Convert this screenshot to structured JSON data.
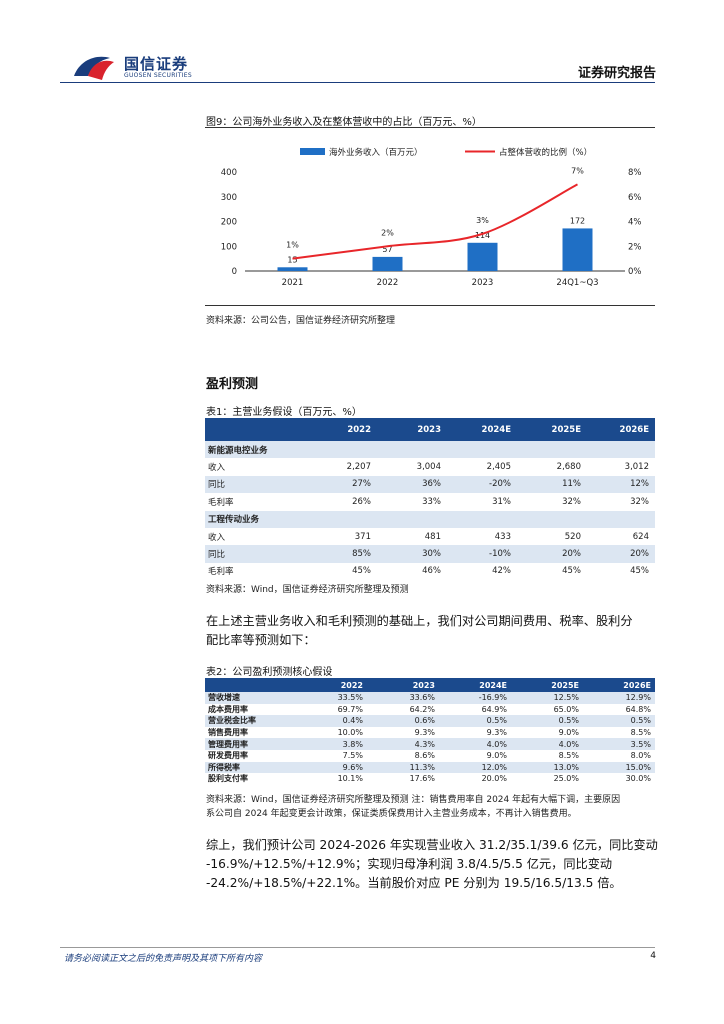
{
  "header": {
    "logo_cn": "国信证券",
    "logo_en": "GUOSEN SECURITIES",
    "report_type": "证券研究报告"
  },
  "figure9": {
    "caption": "图9：公司海外业务收入及在整体营收中的占比（百万元、%）",
    "source": "资料来源：公司公告，国信证券经济研究所整理"
  },
  "chart_data": {
    "type": "bar",
    "categories": [
      "2021",
      "2022",
      "2023",
      "24Q1~Q3"
    ],
    "series": [
      {
        "name": "海外业务收入（百万元）",
        "type": "bar",
        "axis": "left",
        "values": [
          15,
          57,
          114,
          172
        ],
        "color": "#1f6fc5"
      },
      {
        "name": "占整体营收的比例（%）",
        "type": "line",
        "axis": "right",
        "values": [
          1,
          2,
          3,
          7
        ],
        "color": "#e8262a"
      }
    ],
    "bar_labels": [
      "15",
      "57",
      "114",
      "172"
    ],
    "line_labels": [
      "1%",
      "2%",
      "3%",
      "7%"
    ],
    "ylim": [
      0,
      400
    ],
    "yticks": [
      "0",
      "100",
      "200",
      "300",
      "400"
    ],
    "y2lim": [
      0,
      8
    ],
    "y2ticks": [
      "0%",
      "2%",
      "4%",
      "6%",
      "8%"
    ],
    "legend_position": "top",
    "grid": false
  },
  "section_title": "盈利预测",
  "table1": {
    "caption": "表1：主营业务假设（百万元、%）",
    "headers": [
      "",
      "2022",
      "2023",
      "2024E",
      "2025E",
      "2026E"
    ],
    "rows": [
      {
        "kind": "sec",
        "cells": [
          "新能源电控业务",
          "",
          "",
          "",
          "",
          ""
        ]
      },
      {
        "kind": "row",
        "cells": [
          "收入",
          "2,207",
          "3,004",
          "2,405",
          "2,680",
          "3,012"
        ]
      },
      {
        "kind": "row",
        "cells": [
          "同比",
          "27%",
          "36%",
          "-20%",
          "11%",
          "12%"
        ]
      },
      {
        "kind": "row",
        "cells": [
          "毛利率",
          "26%",
          "33%",
          "31%",
          "32%",
          "32%"
        ]
      },
      {
        "kind": "sec",
        "cells": [
          "工程传动业务",
          "",
          "",
          "",
          "",
          ""
        ]
      },
      {
        "kind": "row",
        "cells": [
          "收入",
          "371",
          "481",
          "433",
          "520",
          "624"
        ]
      },
      {
        "kind": "row",
        "cells": [
          "同比",
          "85%",
          "30%",
          "-10%",
          "20%",
          "20%"
        ]
      },
      {
        "kind": "row",
        "cells": [
          "毛利率",
          "45%",
          "46%",
          "42%",
          "45%",
          "45%"
        ]
      }
    ],
    "source": "资料来源：Wind，国信证券经济研究所整理及预测"
  },
  "paragraph1": {
    "line1": "在上述主营业务收入和毛利预测的基础上，我们对公司期间费用、税率、股利分",
    "line2": "配比率等预测如下："
  },
  "table2": {
    "caption": "表2：公司盈利预测核心假设",
    "headers": [
      "",
      "2022",
      "2023",
      "2024E",
      "2025E",
      "2026E"
    ],
    "rows": [
      [
        "营收增速",
        "33.5%",
        "33.6%",
        "-16.9%",
        "12.5%",
        "12.9%"
      ],
      [
        "成本费用率",
        "69.7%",
        "64.2%",
        "64.9%",
        "65.0%",
        "64.8%"
      ],
      [
        "营业税金比率",
        "0.4%",
        "0.6%",
        "0.5%",
        "0.5%",
        "0.5%"
      ],
      [
        "销售费用率",
        "10.0%",
        "9.3%",
        "9.3%",
        "9.0%",
        "8.5%"
      ],
      [
        "管理费用率",
        "3.8%",
        "4.3%",
        "4.0%",
        "4.0%",
        "3.5%"
      ],
      [
        "研发费用率",
        "7.5%",
        "8.6%",
        "9.0%",
        "8.5%",
        "8.0%"
      ],
      [
        "所得税率",
        "9.6%",
        "11.3%",
        "12.0%",
        "13.0%",
        "15.0%"
      ],
      [
        "股利支付率",
        "10.1%",
        "17.6%",
        "20.0%",
        "25.0%",
        "30.0%"
      ]
    ],
    "source_line1": "资料来源：Wind，国信证券经济研究所整理及预测 注：销售费用率自 2024 年起有大幅下调，主要原因",
    "source_line2": "系公司自 2024 年起变更会计政策，保证类质保费用计入主营业务成本，不再计入销售费用。"
  },
  "paragraph2": {
    "line1": "综上，我们预计公司 2024-2026 年实现营业收入 31.2/35.1/39.6 亿元，同比变动",
    "line2": "-16.9%/+12.5%/+12.9%；实现归母净利润 3.8/4.5/5.5 亿元，同比变动",
    "line3": "-24.2%/+18.5%/+22.1%。当前股价对应 PE 分别为 19.5/16.5/13.5 倍。"
  },
  "footer": {
    "disclaimer": "请务必阅读正文之后的免责声明及其项下所有内容",
    "page": "4"
  }
}
